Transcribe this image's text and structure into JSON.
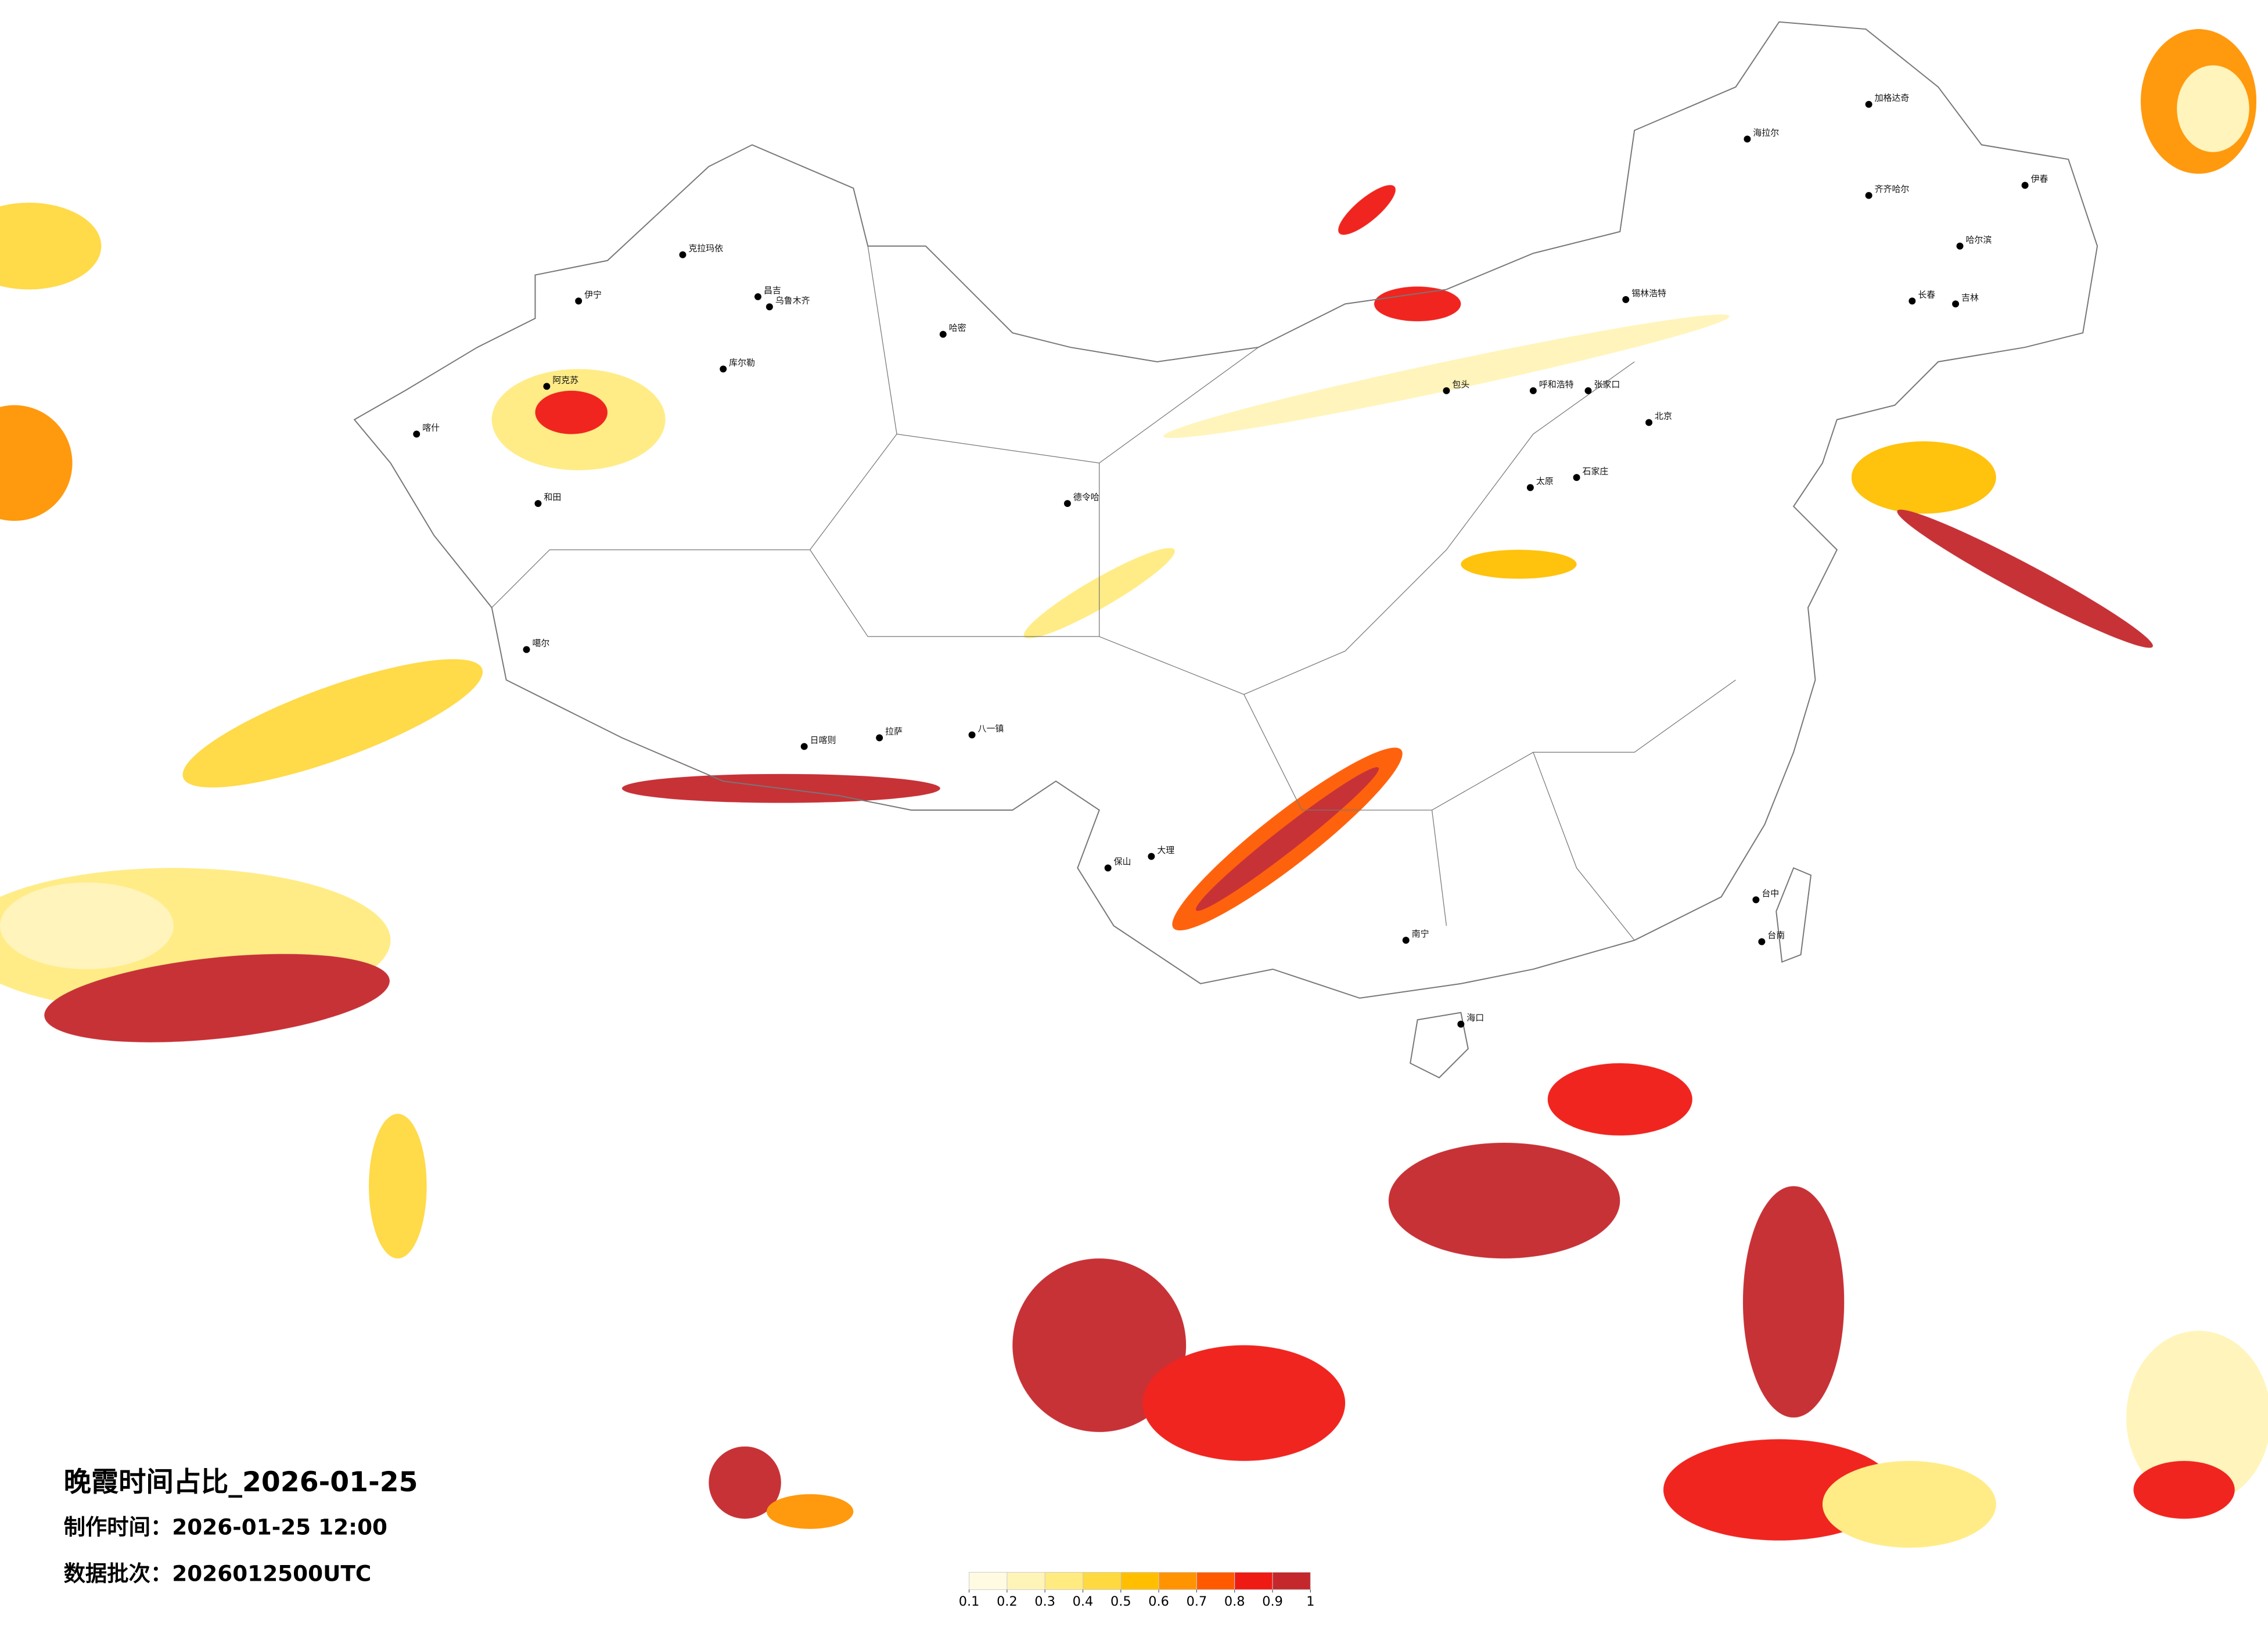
{
  "title": "晚霞时间占比_2026-01-25",
  "made_time": "制作时间：2026-01-25 12:00",
  "data_batch": "数据批次：2026012500UTC",
  "legend": {
    "ticks": [
      0.1,
      0.2,
      0.3,
      0.4,
      0.5,
      0.6,
      0.7,
      0.8,
      0.9,
      1
    ],
    "colors": [
      "#fffbe3",
      "#fff4b8",
      "#ffeb80",
      "#ffd940",
      "#ffbf00",
      "#ff9400",
      "#ff5a00",
      "#f01a14",
      "#c4282d"
    ]
  },
  "cities": [
    "海拉尔",
    "加格达奇",
    "齐齐哈尔",
    "哈尔滨",
    "长春",
    "吉林",
    "伊春",
    "锡林浩特",
    "呼和浩特",
    "包头",
    "张家口",
    "石家庄",
    "太原",
    "北京",
    "克拉玛依",
    "昌吉",
    "乌鲁木齐",
    "伊宁",
    "阿克苏",
    "喀什",
    "和田",
    "库尔勒",
    "哈密",
    "德令哈",
    "噶尔",
    "日喀则",
    "拉萨",
    "八一镇",
    "大理",
    "保山",
    "南宁",
    "海口",
    "台中",
    "台南"
  ]
}
